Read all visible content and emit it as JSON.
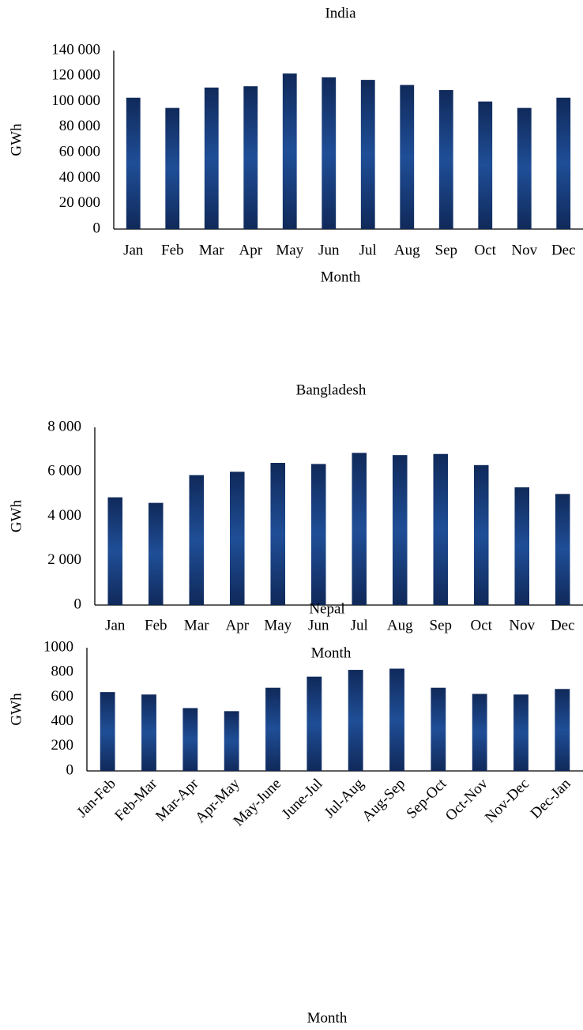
{
  "chart_data": [
    {
      "type": "bar",
      "title": "India",
      "x_label": "Month",
      "y_label": "GWh",
      "categories": [
        "Jan",
        "Feb",
        "Mar",
        "Apr",
        "May",
        "Jun",
        "Jul",
        "Aug",
        "Sep",
        "Oct",
        "Nov",
        "Dec"
      ],
      "values": [
        103000,
        95000,
        111000,
        112000,
        122000,
        119000,
        117000,
        113000,
        109000,
        100000,
        95000,
        103000
      ],
      "color": "#1f4e97",
      "grid": false,
      "ylim": [
        0,
        140000
      ],
      "yticks": [
        0,
        {
          "value": 20000,
          "label": "20 000"
        },
        {
          "value": 40000,
          "label": "40 000"
        },
        {
          "value": 60000,
          "label": "60 000"
        },
        {
          "value": 80000,
          "label": "80 000"
        },
        {
          "value": 100000,
          "label": "100 000"
        },
        {
          "value": 120000,
          "label": "120 000"
        },
        {
          "value": 140000,
          "label": "140 000"
        }
      ]
    },
    {
      "type": "bar",
      "title": "Bangladesh",
      "x_label": "Month",
      "y_label": "GWh",
      "categories": [
        "Jan",
        "Feb",
        "Mar",
        "Apr",
        "May",
        "Jun",
        "Jul",
        "Aug",
        "Sep",
        "Oct",
        "Nov",
        "Dec"
      ],
      "values": [
        4850,
        4600,
        5850,
        6000,
        6400,
        6350,
        6850,
        6750,
        6800,
        6300,
        5300,
        5000
      ],
      "color": "#1f4e97",
      "grid": false,
      "ylim": [
        0,
        8000
      ],
      "yticks": [
        0,
        {
          "value": 2000,
          "label": "2 000"
        },
        {
          "value": 4000,
          "label": "4 000"
        },
        {
          "value": 6000,
          "label": "6 000"
        },
        {
          "value": 8000,
          "label": "8 000"
        }
      ]
    },
    {
      "type": "bar",
      "title": "Nepal",
      "x_label": "Month",
      "y_label": "GWh",
      "categories": [
        "Jan-Feb",
        "Feb-Mar",
        "Mar-Apr",
        "Apr-May",
        "May-June",
        "June-Jul",
        "Jul-Aug",
        "Aug-Sep",
        "Sep-Oct",
        "Oct-Nov",
        "Nov-Dec",
        "Dec-Jan"
      ],
      "values": [
        640,
        620,
        510,
        485,
        675,
        765,
        820,
        830,
        675,
        625,
        620,
        665
      ],
      "color": "#1f4e97",
      "grid": false,
      "ylim": [
        0,
        1000
      ],
      "yticks": [
        0,
        200,
        400,
        600,
        800,
        1000
      ]
    }
  ]
}
